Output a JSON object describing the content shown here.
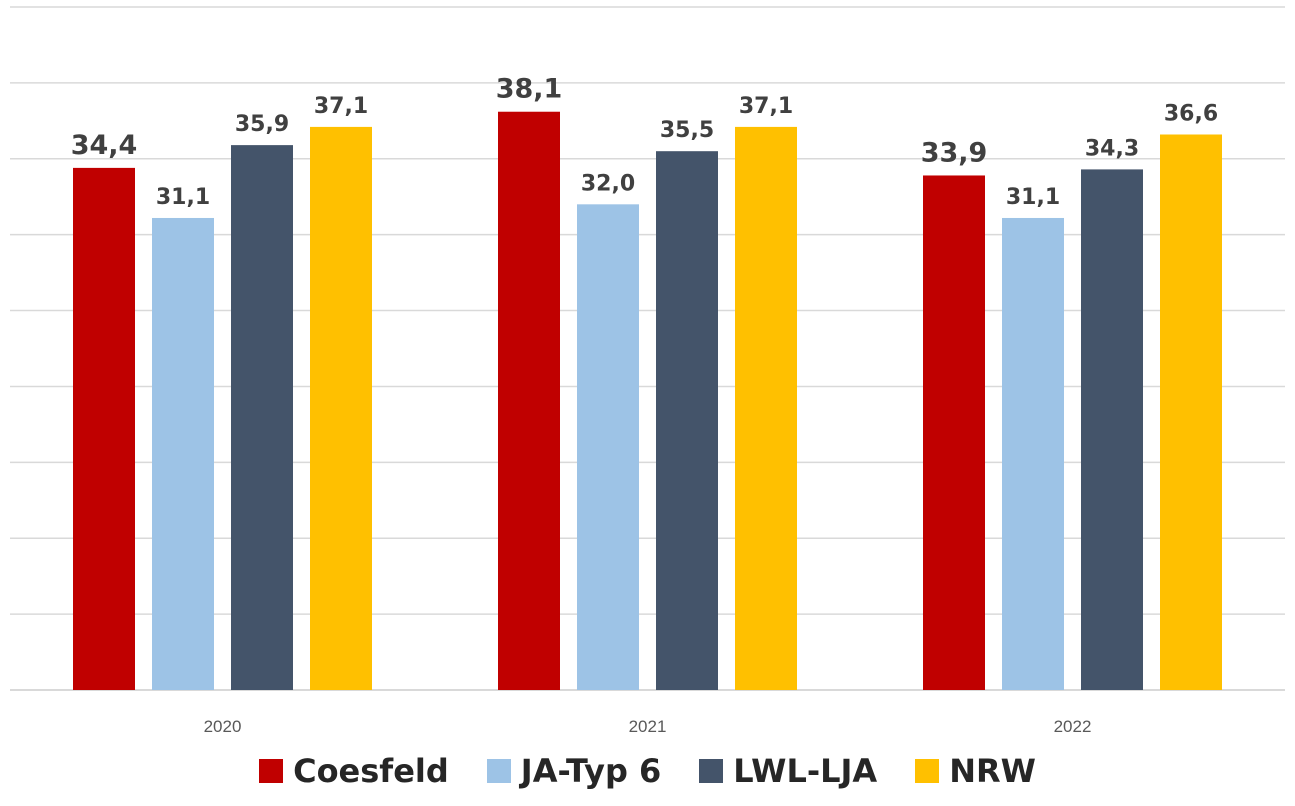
{
  "chart_data": {
    "type": "bar",
    "categories": [
      "2020",
      "2021",
      "2022"
    ],
    "series": [
      {
        "name": "Coesfeld",
        "color": "#c00000",
        "values": [
          34.4,
          38.1,
          33.9
        ],
        "labels": [
          "34,4",
          "38,1",
          "33,9"
        ]
      },
      {
        "name": "JA-Typ 6",
        "color": "#9dc3e6",
        "values": [
          31.1,
          32.0,
          31.1
        ],
        "labels": [
          "31,1",
          "32,0",
          "31,1"
        ]
      },
      {
        "name": "LWL-LJA",
        "color": "#44546a",
        "values": [
          35.9,
          35.5,
          34.3
        ],
        "labels": [
          "35,9",
          "35,5",
          "34,3"
        ]
      },
      {
        "name": "NRW",
        "color": "#ffc000",
        "values": [
          37.1,
          37.1,
          36.6
        ],
        "labels": [
          "37,1",
          "37,1",
          "36,6"
        ]
      }
    ],
    "ylim": [
      0,
      45
    ],
    "grid": true,
    "legend_position": "bottom"
  }
}
